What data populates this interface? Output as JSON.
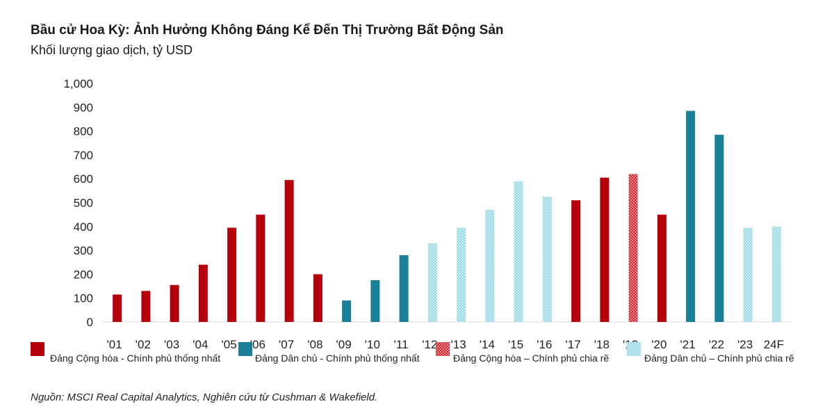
{
  "title": "Bầu cử Hoa Kỳ: Ảnh Hưởng Không Đáng Kể Đến Thị Trường Bất Động Sản",
  "subtitle": "Khối lượng giao dịch, tỷ USD",
  "source": "Nguồn: MSCI Real Capital Analytics, Nghiên cứu từ Cushman & Wakefield.",
  "colors": {
    "rep_unified": "#b5000b",
    "dem_unified": "#1a7f99",
    "rep_divided": "#d9434f",
    "dem_divided": "#8fd3e0"
  },
  "chart_data": {
    "type": "bar",
    "title": "Bầu cử Hoa Kỳ: Ảnh Hưởng Không Đáng Kể Đến Thị Trường Bất Động Sản",
    "subtitle": "Khối lượng giao dịch, tỷ USD",
    "xlabel": "",
    "ylabel": "",
    "ylim": [
      0,
      1000
    ],
    "yticks": [
      "0",
      "100",
      "200",
      "300",
      "400",
      "500",
      "600",
      "700",
      "800",
      "900",
      "1,000"
    ],
    "ytick_values": [
      0,
      100,
      200,
      300,
      400,
      500,
      600,
      700,
      800,
      900,
      1000
    ],
    "grid": false,
    "legend_position": "bottom",
    "categories": [
      "'01",
      "'02",
      "'03",
      "'04",
      "'05",
      "'06",
      "'07",
      "'08",
      "'09",
      "'10",
      "'11",
      "'12",
      "'13",
      "'14",
      "'15",
      "'16",
      "'17",
      "'18",
      "'19",
      "'20",
      "'21",
      "'22",
      "'23",
      "24F"
    ],
    "values": [
      115,
      130,
      155,
      240,
      395,
      450,
      595,
      200,
      90,
      175,
      280,
      330,
      395,
      470,
      590,
      525,
      510,
      605,
      620,
      450,
      885,
      785,
      395,
      400
    ],
    "groups": [
      "rep_unified",
      "rep_unified",
      "rep_unified",
      "rep_unified",
      "rep_unified",
      "rep_unified",
      "rep_unified",
      "rep_unified",
      "dem_unified",
      "dem_unified",
      "dem_unified",
      "dem_divided",
      "dem_divided",
      "dem_divided",
      "dem_divided",
      "dem_divided",
      "rep_unified",
      "rep_unified",
      "rep_divided",
      "rep_unified",
      "dem_unified",
      "dem_unified",
      "dem_divided",
      "dem_divided"
    ],
    "legend": [
      {
        "key": "rep_unified",
        "label": "Đảng Cộng hòa - Chính phủ thống nhất"
      },
      {
        "key": "dem_unified",
        "label": "Đảng Dân chủ - Chính phủ thống nhất"
      },
      {
        "key": "rep_divided",
        "label": "Đảng Cộng hòa – Chính phủ chia rẽ"
      },
      {
        "key": "dem_divided",
        "label": "Đảng Dân chủ – Chính phủ chia rẽ"
      }
    ]
  }
}
